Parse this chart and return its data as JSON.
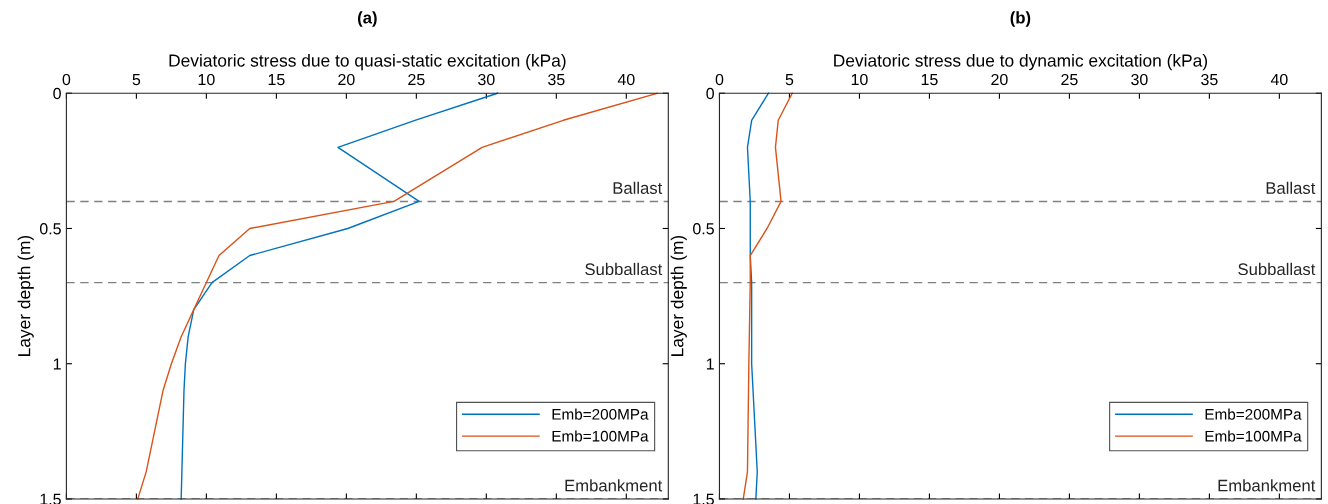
{
  "chart_data": [
    {
      "type": "line",
      "title": "(a)",
      "xlabel": "Deviatoric stress due to quasi-static excitation (kPa)",
      "ylabel": "Layer depth (m)",
      "xlim": [
        0,
        43
      ],
      "xticks": [
        0,
        5,
        10,
        15,
        20,
        25,
        30,
        35,
        40
      ],
      "ylim": [
        1.5,
        0
      ],
      "yticks": [
        0,
        0.5,
        1,
        1.5
      ],
      "grid": false,
      "legend": "bottom right",
      "line_style": "solid",
      "series": [
        {
          "name": "Emb=200MPa",
          "color": "#0072bd",
          "values": [
            0,
            0.1,
            0.2,
            0.4,
            0.5,
            0.6,
            0.7,
            0.8,
            0.9,
            1.0,
            1.1,
            1.5
          ],
          "x": [
            30.8,
            24.9,
            19.4,
            25.2,
            20.1,
            13.1,
            10.4,
            9.1,
            8.7,
            8.5,
            8.4,
            8.2
          ]
        },
        {
          "name": "Emb=100MPa",
          "color": "#d95319",
          "values": [
            0,
            0.1,
            0.2,
            0.4,
            0.5,
            0.6,
            0.7,
            0.8,
            0.9,
            1.0,
            1.1,
            1.2,
            1.3,
            1.4,
            1.5
          ],
          "x": [
            42.2,
            35.5,
            29.7,
            23.4,
            13.1,
            10.9,
            10.0,
            9.1,
            8.2,
            7.5,
            6.9,
            6.5,
            6.1,
            5.7,
            5.1
          ]
        }
      ],
      "ref_lines": [
        {
          "axis": "y",
          "value": 0.4,
          "label": "Ballast",
          "color": "#808080",
          "line_style": "dashed"
        },
        {
          "axis": "y",
          "value": 0.7,
          "label": "Subballast",
          "color": "#808080",
          "line_style": "dashed"
        },
        {
          "axis": "y",
          "value": 1.5,
          "label": "Embankment",
          "color": "#808080",
          "line_style": "dashed"
        }
      ]
    },
    {
      "type": "line",
      "title": "(b)",
      "xlabel": "Deviatoric stress due to dynamic excitation (kPa)",
      "ylabel": "Layer depth (m)",
      "xlim": [
        0,
        43
      ],
      "xticks": [
        0,
        5,
        10,
        15,
        20,
        25,
        30,
        35,
        40
      ],
      "ylim": [
        1.5,
        0
      ],
      "yticks": [
        0,
        0.5,
        1,
        1.5
      ],
      "grid": false,
      "legend": "bottom right",
      "line_style": "solid",
      "series": [
        {
          "name": "Emb=200MPa",
          "color": "#0072bd",
          "values": [
            0,
            0.1,
            0.2,
            0.4,
            0.6,
            0.7,
            1.0,
            1.4,
            1.5
          ],
          "x": [
            3.5,
            2.3,
            2.0,
            2.2,
            2.2,
            2.3,
            2.3,
            2.7,
            2.6
          ]
        },
        {
          "name": "Emb=100MPa",
          "color": "#d95319",
          "values": [
            0,
            0.1,
            0.2,
            0.4,
            0.5,
            0.6,
            0.7,
            1.0,
            1.4,
            1.5
          ],
          "x": [
            5.2,
            4.2,
            4.0,
            4.4,
            3.4,
            2.2,
            2.2,
            2.1,
            2.0,
            1.7
          ]
        }
      ],
      "ref_lines": [
        {
          "axis": "y",
          "value": 0.4,
          "label": "Ballast",
          "color": "#808080",
          "line_style": "dashed"
        },
        {
          "axis": "y",
          "value": 0.7,
          "label": "Subballast",
          "color": "#808080",
          "line_style": "dashed"
        },
        {
          "axis": "y",
          "value": 1.5,
          "label": "Embankment",
          "color": "#808080",
          "line_style": "dashed"
        }
      ]
    }
  ]
}
